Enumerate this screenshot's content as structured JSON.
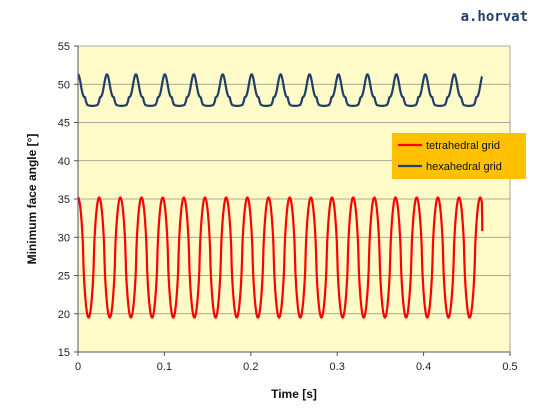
{
  "watermark": "a.horvat",
  "chart_data": {
    "type": "line",
    "xlabel": "Time [s]",
    "ylabel": "Minimum face angle [°]",
    "xlim": [
      0,
      0.5
    ],
    "ylim": [
      15,
      55
    ],
    "xticks": [
      "0",
      "0.1",
      "0.2",
      "0.3",
      "0.4",
      "0.5"
    ],
    "yticks": [
      "15",
      "20",
      "25",
      "30",
      "35",
      "40",
      "45",
      "50",
      "55"
    ],
    "grid": "horizontal",
    "plot_background": "#fffbc8",
    "legend_placement": "right",
    "legend_background": "#ffc000",
    "series": [
      {
        "name": "tetrahedral grid",
        "color": "#ff0000",
        "x_start": 0.0,
        "x_end": 0.468,
        "period": 0.0245,
        "min": 19.5,
        "max": 35.2,
        "start_value": 35.0,
        "end_value": 30.8
      },
      {
        "name": "hexahedral grid",
        "color": "#1f3f66",
        "x_start": 0.0,
        "x_end": 0.468,
        "period": 0.0335,
        "min": 47.3,
        "max": 51.3,
        "start_value": 49.8,
        "end_value": 51.0
      }
    ]
  }
}
